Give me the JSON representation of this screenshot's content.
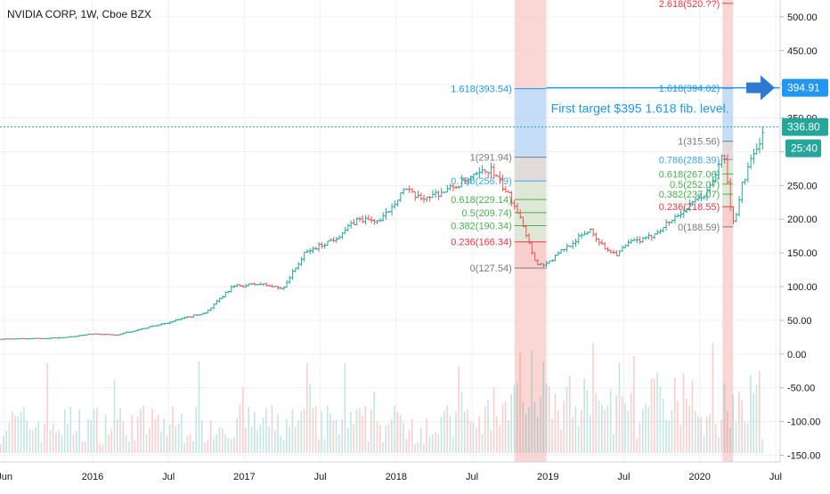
{
  "chart_title": "NVIDIA CORP, 1W, Cboe BZX",
  "annotation_text": "First target $395 1.618 fib. level.",
  "colors": {
    "up": "#26a69a",
    "down": "#ef5350",
    "fib_blue": "#2196f3",
    "fib_label_blue": "#42a5f5",
    "fib_green": "#4caf50",
    "fib_red": "#f23645",
    "fib_gray": "#787b86",
    "shade_red": "#f8c9c7",
    "shade_blue": "#bbdefb",
    "shade_gray": "#dcdcdc",
    "shade_green": "#d5ecd6",
    "grid": "#eef0f3",
    "arrow": "#2f7ad1",
    "price_last": "#26a69a",
    "price_marker": "#2196f3"
  },
  "chart_data": {
    "type": "ohlc",
    "y_axis": {
      "ticks": [
        500,
        450,
        400,
        350,
        300,
        250,
        200,
        150,
        100,
        50,
        0,
        -50,
        -100,
        -150
      ],
      "tick_labels": [
        "500.00",
        "450.00",
        "400.00",
        "350.00",
        "300.00",
        "250.00",
        "200.00",
        "150.00",
        "100.00",
        "50.00",
        "0.00",
        "-50.00",
        "-100.00",
        "-150.00"
      ],
      "range": [
        -160,
        525
      ]
    },
    "x_axis": {
      "labels": [
        "Jun",
        "2016",
        "Jul",
        "2017",
        "Jul",
        "2018",
        "Jul",
        "2019",
        "Jul",
        "2020",
        "Jul"
      ],
      "label_dates": [
        2015.42,
        2016.0,
        2016.5,
        2017.0,
        2017.5,
        2018.0,
        2018.5,
        2019.0,
        2019.5,
        2020.0,
        2020.5
      ],
      "range": [
        2015.39,
        2020.53
      ]
    },
    "price_anchors": [
      {
        "t": 2015.39,
        "p": 22
      },
      {
        "t": 2015.8,
        "p": 24
      },
      {
        "t": 2016.0,
        "p": 30
      },
      {
        "t": 2016.15,
        "p": 28
      },
      {
        "t": 2016.5,
        "p": 47
      },
      {
        "t": 2016.75,
        "p": 62
      },
      {
        "t": 2016.92,
        "p": 100
      },
      {
        "t": 2017.1,
        "p": 104
      },
      {
        "t": 2017.25,
        "p": 97
      },
      {
        "t": 2017.4,
        "p": 150
      },
      {
        "t": 2017.6,
        "p": 172
      },
      {
        "t": 2017.75,
        "p": 200
      },
      {
        "t": 2017.9,
        "p": 197
      },
      {
        "t": 2018.05,
        "p": 245
      },
      {
        "t": 2018.15,
        "p": 230
      },
      {
        "t": 2018.3,
        "p": 240
      },
      {
        "t": 2018.45,
        "p": 255
      },
      {
        "t": 2018.62,
        "p": 275
      },
      {
        "t": 2018.75,
        "p": 232
      },
      {
        "t": 2018.82,
        "p": 205
      },
      {
        "t": 2018.88,
        "p": 160
      },
      {
        "t": 2018.93,
        "p": 132
      },
      {
        "t": 2019.0,
        "p": 135
      },
      {
        "t": 2019.1,
        "p": 155
      },
      {
        "t": 2019.28,
        "p": 185
      },
      {
        "t": 2019.36,
        "p": 160
      },
      {
        "t": 2019.45,
        "p": 148
      },
      {
        "t": 2019.55,
        "p": 167
      },
      {
        "t": 2019.65,
        "p": 170
      },
      {
        "t": 2019.85,
        "p": 205
      },
      {
        "t": 2020.05,
        "p": 240
      },
      {
        "t": 2020.12,
        "p": 275
      },
      {
        "t": 2020.16,
        "p": 300
      },
      {
        "t": 2020.2,
        "p": 220
      },
      {
        "t": 2020.23,
        "p": 190
      },
      {
        "t": 2020.27,
        "p": 245
      },
      {
        "t": 2020.33,
        "p": 282
      },
      {
        "t": 2020.38,
        "p": 305
      },
      {
        "t": 2020.42,
        "p": 336.8
      }
    ],
    "fib_sets": [
      {
        "t_start": 2018.78,
        "t_end": 2018.99,
        "label_anchor": "right-of-label-column",
        "levels": [
          {
            "label": "1.618(393.54)",
            "value": 393.54,
            "color": "#2196f3"
          },
          {
            "label": "1(291.94)",
            "value": 291.94,
            "color": "#787b86"
          },
          {
            "label": "0.786(256.79)",
            "value": 256.79,
            "color": "#42a5f5"
          },
          {
            "label": "0.618(229.14)",
            "value": 229.14,
            "color": "#4caf50"
          },
          {
            "label": "0.5(209.74)",
            "value": 209.74,
            "color": "#4caf50"
          },
          {
            "label": "0.382(190.34)",
            "value": 190.34,
            "color": "#4caf50"
          },
          {
            "label": "0.236(166.34)",
            "value": 166.34,
            "color": "#f23645"
          },
          {
            "label": "0(127.54)",
            "value": 127.54,
            "color": "#787b86"
          }
        ]
      },
      {
        "t_start": 2020.15,
        "t_end": 2020.22,
        "levels": [
          {
            "label": "2.618(520.??)",
            "value": 520,
            "color": "#f23645"
          },
          {
            "label": "1.618(394.02)",
            "value": 394.02,
            "color": "#2196f3"
          },
          {
            "label": "1(315.56)",
            "value": 315.56,
            "color": "#787b86"
          },
          {
            "label": "0.786(288.39)",
            "value": 288.39,
            "color": "#42a5f5"
          },
          {
            "label": "0.618(267.06)",
            "value": 267.06,
            "color": "#4caf50"
          },
          {
            "label": "0.5(252.07)",
            "value": 252.07,
            "color": "#4caf50"
          },
          {
            "label": "0.382(237.07)",
            "value": 237.07,
            "color": "#4caf50"
          },
          {
            "label": "0.236(218.55)",
            "value": 218.55,
            "color": "#f23645"
          },
          {
            "label": "0(188.59)",
            "value": 188.59,
            "color": "#787b86"
          }
        ]
      }
    ],
    "target_line": {
      "value": 394.91,
      "label": "394.91"
    },
    "last_price": {
      "value": 336.8,
      "label": "336.80",
      "countdown": "25:40"
    }
  }
}
